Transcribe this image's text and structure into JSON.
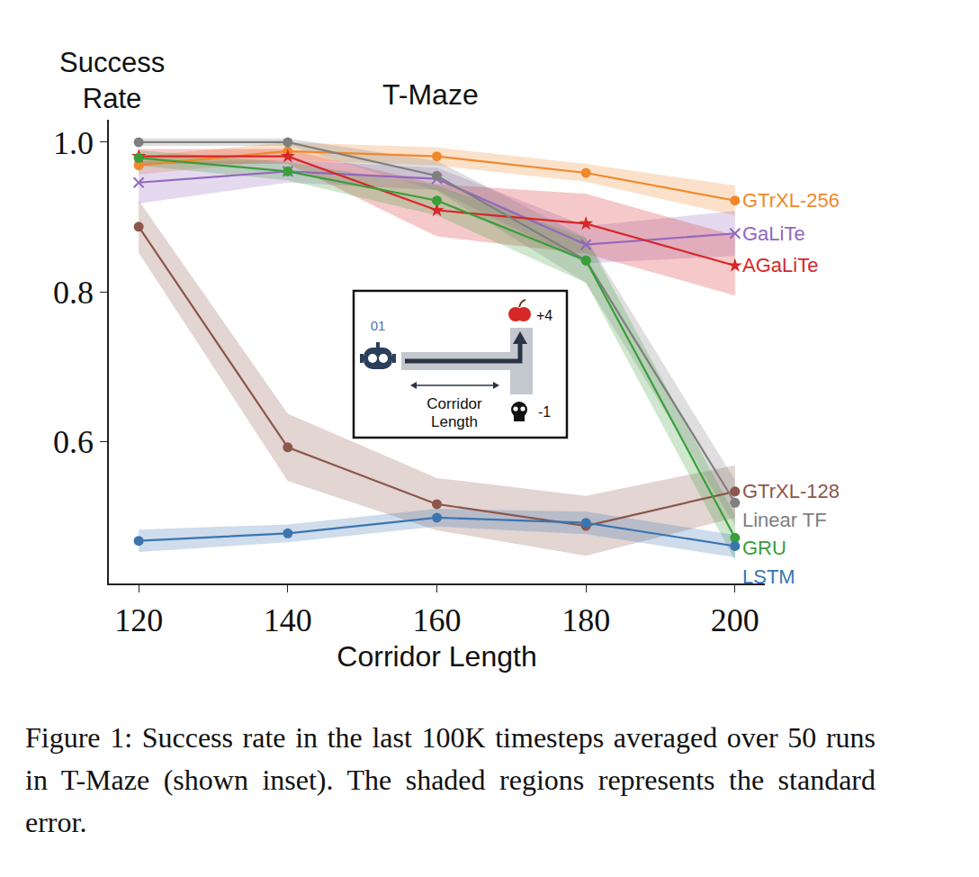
{
  "chart_data": {
    "type": "line",
    "title": "T-Maze",
    "x_label": "Corridor Length",
    "y_label": "Success Rate",
    "x": [
      120,
      140,
      160,
      180,
      200
    ],
    "xlim": [
      116,
      204
    ],
    "xticks": [
      120,
      140,
      160,
      180,
      200
    ],
    "ylim": [
      0.41,
      1.03
    ],
    "yticks": [
      0.6,
      0.8,
      {
        "value": 1.0,
        "label": "1.0"
      }
    ],
    "grid": false,
    "series": [
      {
        "name": "GTrXL-256",
        "color": "#f0882c",
        "marker": "circle",
        "values": [
          0.969,
          0.988,
          0.981,
          0.959,
          0.922
        ],
        "standard_error": [
          0.012,
          0.012,
          0.012,
          0.012,
          0.02
        ]
      },
      {
        "name": "GaLiTe",
        "color": "#9467bd",
        "marker": "x",
        "values": [
          0.946,
          0.961,
          0.951,
          0.863,
          0.878
        ],
        "standard_error": [
          0.028,
          0.015,
          0.015,
          0.025,
          0.03
        ]
      },
      {
        "name": "AGaLiTe",
        "color": "#d62728",
        "marker": "star",
        "values": [
          0.981,
          0.981,
          0.909,
          0.891,
          0.835
        ],
        "standard_error": [
          0.01,
          0.01,
          0.035,
          0.04,
          0.04
        ]
      },
      {
        "name": "GTrXL-128",
        "color": "#8c564b",
        "marker": "circle",
        "values": [
          0.887,
          0.592,
          0.516,
          0.487,
          0.533
        ],
        "standard_error": [
          0.035,
          0.045,
          0.035,
          0.04,
          0.035
        ]
      },
      {
        "name": "Linear TF",
        "color": "#7f7f7f",
        "marker": "circle",
        "values": [
          1.0,
          1.0,
          0.955,
          0.842,
          0.518
        ],
        "standard_error": [
          0.005,
          0.005,
          0.02,
          0.03,
          0.03
        ]
      },
      {
        "name": "GRU",
        "color": "#3a9e3a",
        "marker": "circle",
        "values": [
          0.979,
          0.961,
          0.922,
          0.842,
          0.471
        ],
        "standard_error": [
          0.01,
          0.012,
          0.02,
          0.03,
          0.03
        ]
      },
      {
        "name": "LSTM",
        "color": "#3a75b0",
        "marker": "circle",
        "values": [
          0.467,
          0.477,
          0.498,
          0.491,
          0.46
        ],
        "standard_error": [
          0.015,
          0.012,
          0.012,
          0.015,
          0.015
        ]
      }
    ],
    "inset": {
      "agent_label": "01",
      "reward_label": "+4",
      "penalty_label": "-1",
      "corridor_label": "Corridor Length"
    },
    "caption": "Figure 1: Success rate in the last 100K timesteps averaged over 50 runs in T-Maze (shown inset). The shaded regions represents the standard error."
  }
}
